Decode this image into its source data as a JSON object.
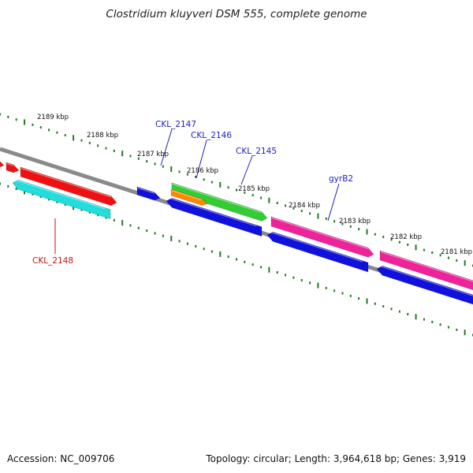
{
  "title": "Clostridium kluyveri DSM 555, complete genome",
  "footer": {
    "accession": "Accession: NC_009706",
    "stats": "Topology: circular; Length: 3,964,618 bp; Genes: 3,919"
  },
  "colors": {
    "backbone": "#8a8a8a",
    "tick": "#1f7a1f",
    "gene_label": "#1f1fbf",
    "highlight_label": "#cc1111"
  },
  "kbp_labels": [
    "2189 kbp",
    "2188 kbp",
    "2187 kbp",
    "2186 kbp",
    "2185 kbp",
    "2184 kbp",
    "2183 kbp",
    "2182 kbp",
    "2181 kbp"
  ],
  "gene_labels": [
    {
      "text": "CKL_2147",
      "kind": "gene"
    },
    {
      "text": "CKL_2146",
      "kind": "gene"
    },
    {
      "text": "CKL_2145",
      "kind": "gene"
    },
    {
      "text": "gyrB2",
      "kind": "gene"
    },
    {
      "text": "CKL_2148",
      "kind": "highlight"
    }
  ],
  "features": [
    {
      "id": "f1",
      "color": "#ee1111",
      "strand": "plus"
    },
    {
      "id": "f2",
      "color": "#ee1111",
      "strand": "plus"
    },
    {
      "id": "f3",
      "color": "#ee1111",
      "strand": "plus"
    },
    {
      "id": "f4",
      "color": "#22dddd",
      "strand": "minus"
    },
    {
      "id": "f5",
      "color": "#1111dd",
      "strand": "plus"
    },
    {
      "id": "f6",
      "color": "#33cc33",
      "strand": "plus"
    },
    {
      "id": "f7",
      "color": "#ff8800",
      "strand": "plus"
    },
    {
      "id": "f8",
      "color": "#1111dd",
      "strand": "minus"
    },
    {
      "id": "f9",
      "color": "#ee2299",
      "strand": "plus"
    },
    {
      "id": "f10",
      "color": "#1111dd",
      "strand": "minus"
    },
    {
      "id": "f11",
      "color": "#ee2299",
      "strand": "plus"
    },
    {
      "id": "f12",
      "color": "#1111dd",
      "strand": "minus"
    }
  ]
}
